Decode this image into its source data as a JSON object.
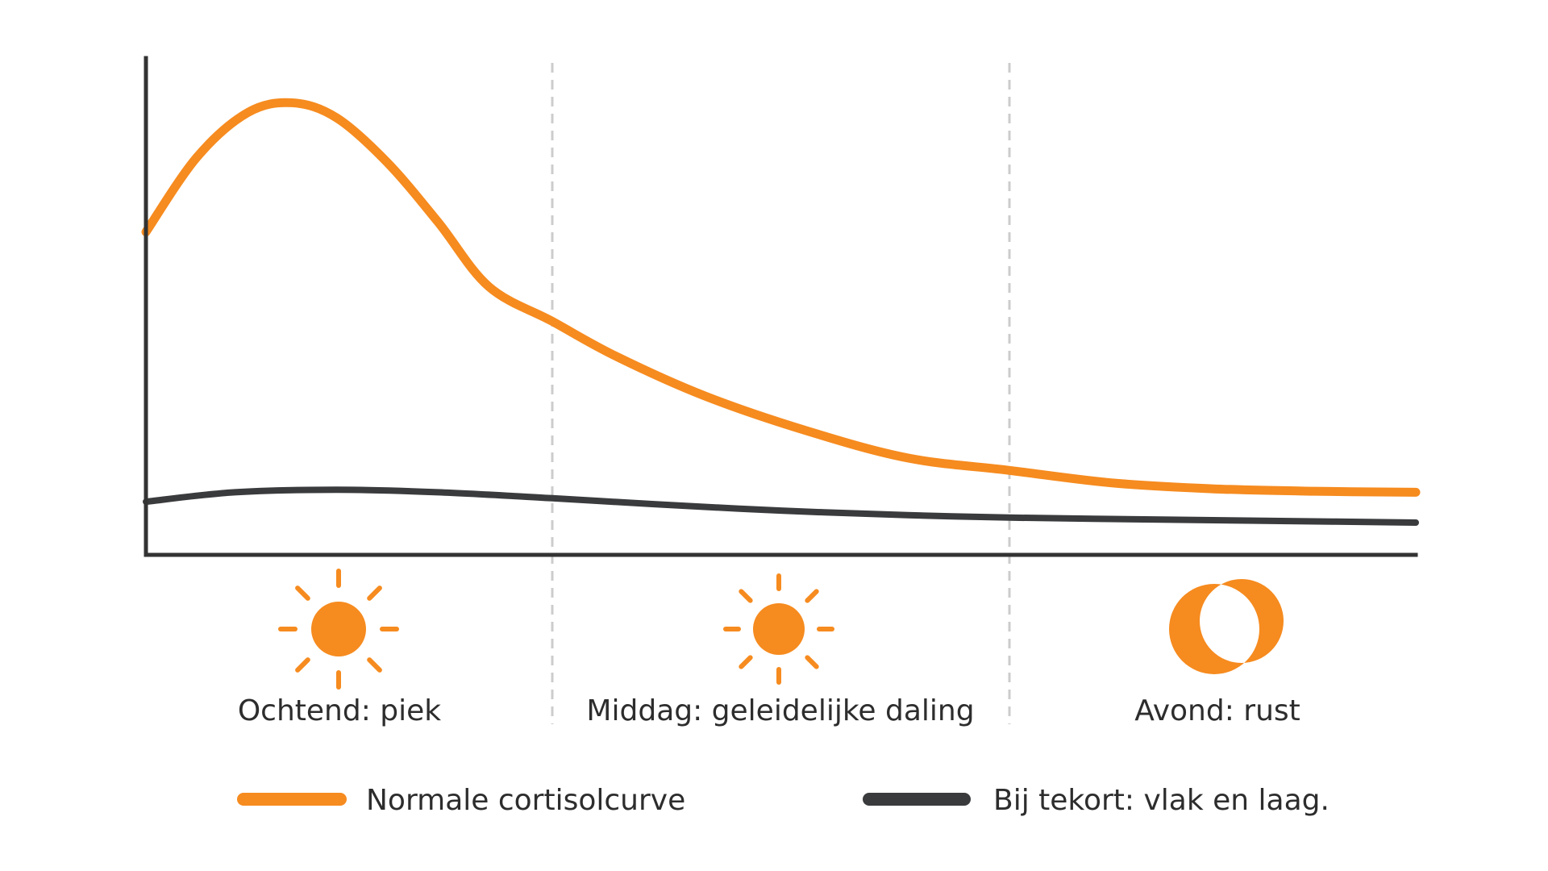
{
  "colors": {
    "normal": "#f68b1f",
    "deficit": "#3a3b3d",
    "axis": "#333333",
    "divider": "#cccccc",
    "text": "#2d2d2d"
  },
  "phases": [
    {
      "label": "Ochtend: piek",
      "icon": "sun-icon"
    },
    {
      "label": "Middag: geleidelijke daling",
      "icon": "sun-icon"
    },
    {
      "label": "Avond: rust",
      "icon": "moon-icon"
    }
  ],
  "legend": [
    {
      "label": "Normale cortisolcurve"
    },
    {
      "label": "Bij tekort: vlak en laag."
    }
  ],
  "chart_data": {
    "type": "line",
    "title": "",
    "xlabel": "",
    "ylabel": "",
    "xlim": [
      0,
      100
    ],
    "ylim": [
      0,
      100
    ],
    "grid": false,
    "legend_position": "bottom",
    "phase_boundaries": [
      32,
      68
    ],
    "series": [
      {
        "name": "Normale cortisolcurve",
        "color": "#f68b1f",
        "x": [
          0,
          4,
          8,
          11.5,
          15,
          19,
          23,
          27,
          32,
          37,
          44,
          52,
          60,
          68,
          76,
          84,
          92,
          100
        ],
        "y": [
          65,
          80,
          89,
          91,
          88,
          79,
          67,
          54,
          47,
          40,
          32,
          25,
          19.5,
          17,
          14.5,
          13.3,
          12.8,
          12.6
        ]
      },
      {
        "name": "Bij tekort: vlak en laag.",
        "color": "#3a3b3d",
        "x": [
          0,
          7,
          15,
          23,
          32,
          40,
          50,
          60,
          68,
          80,
          90,
          100
        ],
        "y": [
          10.7,
          12.6,
          13.1,
          12.6,
          11.4,
          10.2,
          8.9,
          8,
          7.5,
          7.1,
          6.8,
          6.5
        ]
      }
    ]
  }
}
